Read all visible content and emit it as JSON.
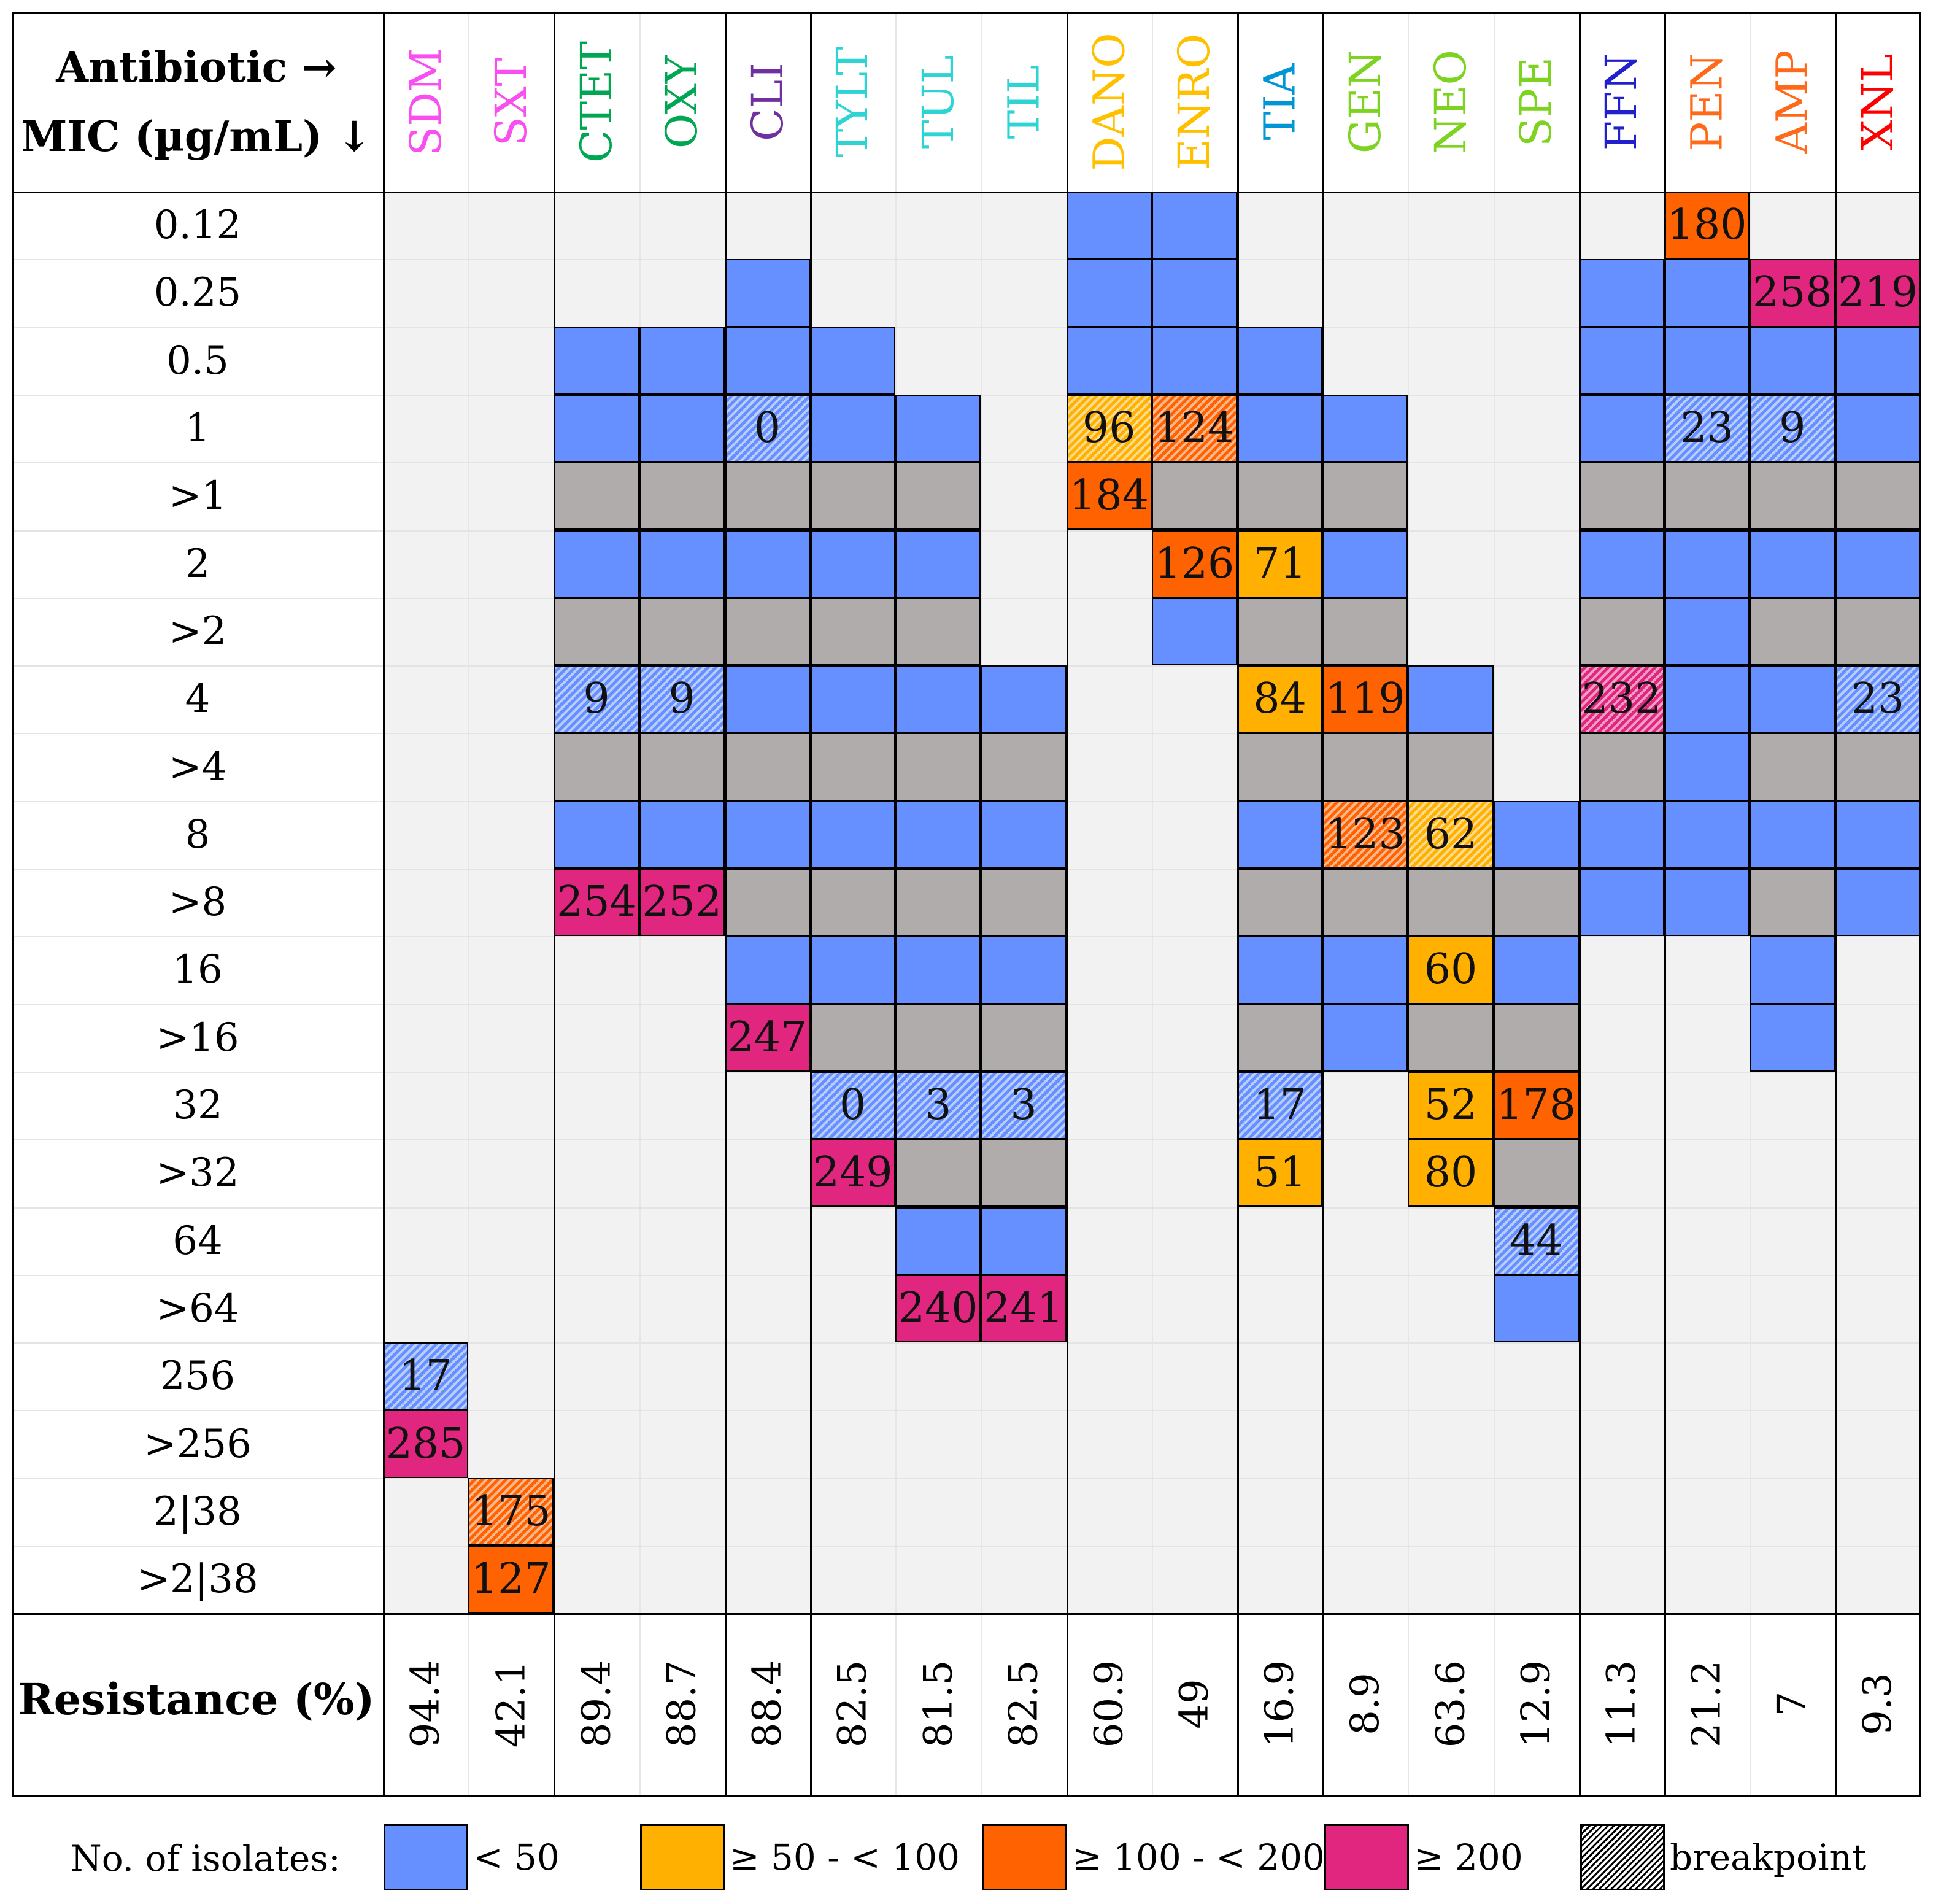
{
  "chart_data": {
    "type": "table",
    "title": "",
    "corner_label": {
      "line1": "Antibiotic →",
      "line2": "MIC (µg/mL) ↓"
    },
    "resistance_label": "Resistance (%)",
    "mic_rows": [
      "0.12",
      "0.25",
      "0.5",
      "1",
      ">1",
      "2",
      ">2",
      "4",
      ">4",
      "8",
      ">8",
      "16",
      ">16",
      "32",
      ">32",
      "64",
      ">64",
      "256",
      ">256",
      "2|38",
      ">2|38"
    ],
    "antibiotics": [
      {
        "code": "SDM",
        "color": "#f94ef0",
        "group": 1,
        "resistance": "94.4",
        "start": 17,
        "cells": [
          "17b",
          "285v"
        ]
      },
      {
        "code": "SXT",
        "color": "#f94ef0",
        "group": 1,
        "resistance": "42.1",
        "start": 19,
        "cells": [
          "175o",
          "127o"
        ]
      },
      {
        "code": "CTET",
        "color": "#00a651",
        "group": 2,
        "resistance": "89.4",
        "start": 2,
        "cells": [
          "b",
          "b",
          "g",
          "b",
          "g",
          "9b",
          "g",
          "b",
          "254v"
        ]
      },
      {
        "code": "OXY",
        "color": "#00a651",
        "group": 2,
        "resistance": "88.7",
        "start": 2,
        "cells": [
          "b",
          "b",
          "g",
          "b",
          "g",
          "9b",
          "g",
          "b",
          "252v"
        ]
      },
      {
        "code": "CLI",
        "color": "#7030a0",
        "group": 3,
        "resistance": "88.4",
        "start": 1,
        "cells": [
          "b",
          "b",
          "0b",
          "g",
          "b",
          "g",
          "b",
          "g",
          "b",
          "g",
          "b",
          "247v"
        ]
      },
      {
        "code": "TYLT",
        "color": "#2ed4d4",
        "group": 4,
        "resistance": "82.5",
        "start": 2,
        "cells": [
          "b",
          "b",
          "g",
          "b",
          "g",
          "b",
          "g",
          "b",
          "g",
          "b",
          "g",
          "0b",
          "249v"
        ]
      },
      {
        "code": "TUL",
        "color": "#2ed4d4",
        "group": 4,
        "resistance": "81.5",
        "start": 3,
        "cells": [
          "b",
          "g",
          "b",
          "g",
          "b",
          "g",
          "b",
          "g",
          "b",
          "g",
          "3b",
          "g",
          "b",
          "240v"
        ]
      },
      {
        "code": "TIL",
        "color": "#2ed4d4",
        "group": 4,
        "resistance": "82.5",
        "start": 7,
        "cells": [
          "b",
          "g",
          "b",
          "g",
          "b",
          "g",
          "3b",
          "g",
          "b",
          "241v"
        ]
      },
      {
        "code": "DANO",
        "color": "#ffc000",
        "group": 5,
        "resistance": "60.9",
        "start": 0,
        "cells": [
          "b",
          "b",
          "b",
          "96y",
          "184o"
        ]
      },
      {
        "code": "ENRO",
        "color": "#ffc000",
        "group": 5,
        "resistance": "49",
        "start": 0,
        "cells": [
          "b",
          "b",
          "b",
          "124o",
          "g",
          "126o",
          "b"
        ]
      },
      {
        "code": "TIA",
        "color": "#0096d6",
        "group": 6,
        "resistance": "16.9",
        "start": 2,
        "cells": [
          "b",
          "b",
          "g",
          "71y",
          "g",
          "84y",
          "g",
          "b",
          "g",
          "b",
          "g",
          "17b",
          "51y"
        ]
      },
      {
        "code": "GEN",
        "color": "#7ed321",
        "group": 7,
        "resistance": "8.9",
        "start": 3,
        "cells": [
          "b",
          "g",
          "b",
          "g",
          "119o",
          "g",
          "123o",
          "g",
          "b",
          "b"
        ]
      },
      {
        "code": "NEO",
        "color": "#7ed321",
        "group": 7,
        "resistance": "63.6",
        "start": 7,
        "cells": [
          "b",
          "g",
          "62y",
          "g",
          "60y",
          "g",
          "52y",
          "80y"
        ]
      },
      {
        "code": "SPE",
        "color": "#7ed321",
        "group": 7,
        "resistance": "12.9",
        "start": 9,
        "cells": [
          "b",
          "g",
          "b",
          "g",
          "178o",
          "g",
          "44b",
          "b"
        ]
      },
      {
        "code": "FFN",
        "color": "#2020cc",
        "group": 8,
        "resistance": "11.3",
        "start": 1,
        "cells": [
          "b",
          "b",
          "b",
          "g",
          "b",
          "g",
          "232v",
          "g",
          "b",
          "b"
        ]
      },
      {
        "code": "PEN",
        "color": "#ff6a1a",
        "group": 9,
        "resistance": "21.2",
        "start": 0,
        "cells": [
          "180o",
          "b",
          "b",
          "23b",
          "g",
          "b",
          "b",
          "b",
          "b",
          "b",
          "b"
        ]
      },
      {
        "code": "AMP",
        "color": "#ff6a1a",
        "group": 9,
        "resistance": "7",
        "start": 1,
        "cells": [
          "258v",
          "b",
          "9b",
          "g",
          "b",
          "g",
          "b",
          "g",
          "b",
          "g",
          "b",
          "b"
        ]
      },
      {
        "code": "XNL",
        "color": "#ff0000",
        "group": 10,
        "resistance": "9.3",
        "start": 1,
        "cells": [
          "219v",
          "b",
          "b",
          "g",
          "b",
          "g",
          "23b",
          "g",
          "b",
          "b"
        ]
      }
    ],
    "cell_code_key": {
      "b": "< 50",
      "y": "≥ 50 - < 100",
      "o": "≥ 100 - < 200",
      "v": "≥ 200",
      "g": "above tested range (grey)",
      "suffix_b_number": "breakpoint hatch when text present"
    },
    "hatched_cells": [
      "SDM:256",
      "SXT:2|38",
      "CTET:4",
      "OXY:4",
      "CLI:1",
      "TYLT:32",
      "TUL:32",
      "TIL:32",
      "DANO:1",
      "ENRO:1",
      "TIA:32",
      "GEN:8",
      "NEO:8",
      "SPE:64",
      "FFN:4",
      "PEN:1",
      "AMP:1",
      "XNL:4"
    ]
  },
  "legend": {
    "title": "No. of isolates:",
    "items": [
      {
        "label": "< 50",
        "color": "#6690ff"
      },
      {
        "label": "≥ 50 - < 100",
        "color": "#ffb000"
      },
      {
        "label": "≥ 100 - < 200",
        "color": "#ff6200"
      },
      {
        "label": "≥ 200",
        "color": "#e0267e"
      },
      {
        "label": "breakpoint",
        "color": "hatch"
      }
    ]
  },
  "colors": {
    "blue": "#6690ff",
    "yellow": "#ffb000",
    "orange": "#ff6200",
    "magenta": "#e0267e",
    "grey": "#b0acac",
    "background": "#f2f2f2"
  }
}
